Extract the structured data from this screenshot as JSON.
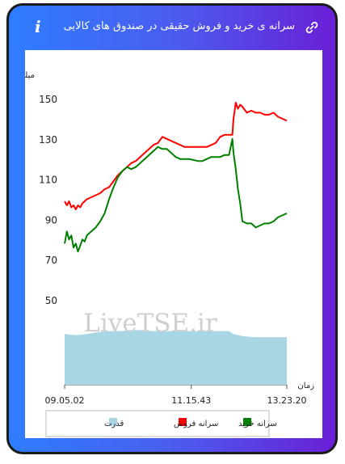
{
  "header": {
    "title": "سرانه ی خرید و فروش حقیقی در صندوق های کالایی",
    "info_glyph": "i",
    "info_icon": "info-icon",
    "share_icon": "link-icon"
  },
  "colors": {
    "buy": "#008000",
    "sell": "#ff0000",
    "power": "#a9d6e5",
    "frame": "#1b1b1b",
    "gradient_left": "#2e7dff",
    "gradient_right": "#6a1fd6"
  },
  "watermark": "LiveTSE.ir",
  "chart_data": {
    "type": "line",
    "ylabel": "میلیون تومان",
    "xlabel": "زمان",
    "ylim": [
      30,
      154
    ],
    "yticks": [
      "150",
      "130",
      "110",
      "90",
      "70",
      "50"
    ],
    "ytick_values": [
      150,
      130,
      110,
      90,
      70,
      50
    ],
    "xticks": [
      "09.05.02",
      "11.15.43",
      "13.23.20"
    ],
    "xtick_positions": [
      0,
      0.57,
      1
    ],
    "grid": false,
    "legend_position": "bottom",
    "legend": [
      {
        "label": "سرانه خرید",
        "color": "#008000"
      },
      {
        "label": "سرانه فروش",
        "color": "#ff0000"
      },
      {
        "label": "قدرت",
        "color": "#a9d6e5"
      }
    ],
    "series": [
      {
        "name": "سرانه فروش",
        "color": "#ff0000",
        "points": [
          [
            0,
            99
          ],
          [
            0.01,
            97
          ],
          [
            0.02,
            99
          ],
          [
            0.03,
            96
          ],
          [
            0.04,
            97
          ],
          [
            0.05,
            95
          ],
          [
            0.06,
            97
          ],
          [
            0.07,
            96
          ],
          [
            0.08,
            98
          ],
          [
            0.09,
            99
          ],
          [
            0.1,
            100
          ],
          [
            0.12,
            101
          ],
          [
            0.14,
            102
          ],
          [
            0.16,
            103
          ],
          [
            0.18,
            105
          ],
          [
            0.2,
            106
          ],
          [
            0.22,
            109
          ],
          [
            0.24,
            112
          ],
          [
            0.26,
            114
          ],
          [
            0.28,
            116
          ],
          [
            0.3,
            118
          ],
          [
            0.32,
            119
          ],
          [
            0.34,
            121
          ],
          [
            0.36,
            123
          ],
          [
            0.38,
            125
          ],
          [
            0.4,
            127
          ],
          [
            0.42,
            128
          ],
          [
            0.44,
            131
          ],
          [
            0.46,
            130
          ],
          [
            0.48,
            129
          ],
          [
            0.5,
            128
          ],
          [
            0.52,
            127
          ],
          [
            0.54,
            126
          ],
          [
            0.56,
            126
          ],
          [
            0.6,
            126
          ],
          [
            0.64,
            126
          ],
          [
            0.66,
            127
          ],
          [
            0.68,
            128
          ],
          [
            0.7,
            131
          ],
          [
            0.72,
            132
          ],
          [
            0.74,
            132
          ],
          [
            0.755,
            132
          ],
          [
            0.76,
            140
          ],
          [
            0.77,
            148
          ],
          [
            0.78,
            145
          ],
          [
            0.79,
            147
          ],
          [
            0.8,
            146
          ],
          [
            0.82,
            143
          ],
          [
            0.84,
            144
          ],
          [
            0.86,
            143
          ],
          [
            0.88,
            143
          ],
          [
            0.9,
            142
          ],
          [
            0.92,
            142
          ],
          [
            0.94,
            143
          ],
          [
            0.96,
            141
          ],
          [
            0.98,
            140
          ],
          [
            1,
            139
          ]
        ]
      },
      {
        "name": "سرانه خرید",
        "color": "#008000",
        "points": [
          [
            0,
            78
          ],
          [
            0.01,
            84
          ],
          [
            0.02,
            80
          ],
          [
            0.03,
            82
          ],
          [
            0.04,
            76
          ],
          [
            0.05,
            78
          ],
          [
            0.06,
            74
          ],
          [
            0.07,
            77
          ],
          [
            0.08,
            80
          ],
          [
            0.09,
            79
          ],
          [
            0.1,
            82
          ],
          [
            0.12,
            84
          ],
          [
            0.14,
            86
          ],
          [
            0.16,
            89
          ],
          [
            0.18,
            93
          ],
          [
            0.2,
            100
          ],
          [
            0.22,
            106
          ],
          [
            0.24,
            111
          ],
          [
            0.26,
            114
          ],
          [
            0.28,
            116
          ],
          [
            0.3,
            115
          ],
          [
            0.32,
            116
          ],
          [
            0.34,
            118
          ],
          [
            0.36,
            120
          ],
          [
            0.38,
            122
          ],
          [
            0.4,
            124
          ],
          [
            0.42,
            126
          ],
          [
            0.44,
            125
          ],
          [
            0.46,
            125
          ],
          [
            0.48,
            123
          ],
          [
            0.5,
            121
          ],
          [
            0.52,
            120
          ],
          [
            0.54,
            120
          ],
          [
            0.56,
            120
          ],
          [
            0.6,
            119
          ],
          [
            0.62,
            119
          ],
          [
            0.64,
            120
          ],
          [
            0.66,
            121
          ],
          [
            0.68,
            121
          ],
          [
            0.7,
            121
          ],
          [
            0.72,
            122
          ],
          [
            0.74,
            122
          ],
          [
            0.755,
            130
          ],
          [
            0.76,
            123
          ],
          [
            0.77,
            115
          ],
          [
            0.78,
            105
          ],
          [
            0.79,
            98
          ],
          [
            0.8,
            89
          ],
          [
            0.82,
            88
          ],
          [
            0.84,
            88
          ],
          [
            0.86,
            86
          ],
          [
            0.88,
            87
          ],
          [
            0.9,
            88
          ],
          [
            0.92,
            88
          ],
          [
            0.94,
            89
          ],
          [
            0.96,
            91
          ],
          [
            0.98,
            92
          ],
          [
            1,
            93
          ]
        ]
      },
      {
        "name": "قدرت",
        "color": "#a9d6e5",
        "points": [
          [
            0,
            33
          ],
          [
            0.05,
            32.5
          ],
          [
            0.1,
            33
          ],
          [
            0.15,
            34
          ],
          [
            0.2,
            34.5
          ],
          [
            0.25,
            34.5
          ],
          [
            0.3,
            35
          ],
          [
            0.35,
            35
          ],
          [
            0.4,
            34.5
          ],
          [
            0.45,
            34.5
          ],
          [
            0.5,
            34.5
          ],
          [
            0.55,
            34.5
          ],
          [
            0.6,
            34.5
          ],
          [
            0.65,
            34.5
          ],
          [
            0.7,
            34.5
          ],
          [
            0.74,
            34.5
          ],
          [
            0.76,
            33
          ],
          [
            0.8,
            32
          ],
          [
            0.85,
            31.5
          ],
          [
            0.9,
            31.5
          ],
          [
            0.95,
            31.5
          ],
          [
            1,
            31.5
          ]
        ]
      }
    ]
  }
}
